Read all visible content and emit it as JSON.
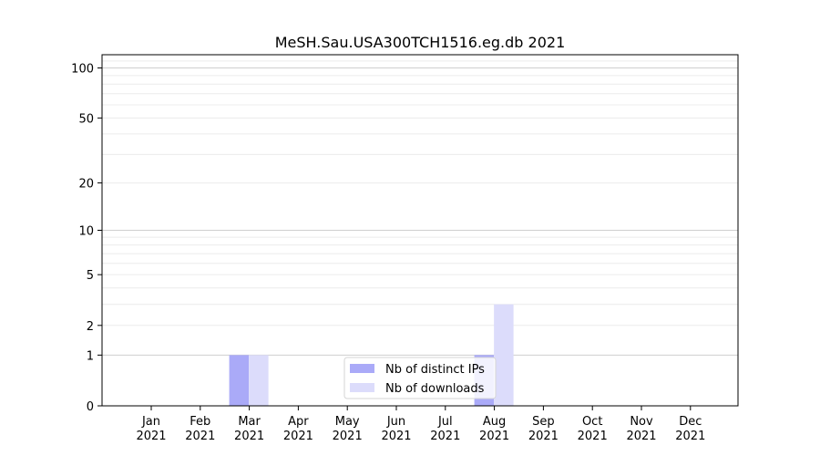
{
  "chart_data": {
    "type": "bar",
    "title": "MeSH.Sau.USA300TCH1516.eg.db 2021",
    "xlabel": "",
    "ylabel": "",
    "yscale": "log(1+y)",
    "ylim": [
      0,
      120
    ],
    "y_ticks": [
      0,
      1,
      2,
      5,
      10,
      20,
      50,
      100
    ],
    "categories": [
      [
        "Jan",
        "2021"
      ],
      [
        "Feb",
        "2021"
      ],
      [
        "Mar",
        "2021"
      ],
      [
        "Apr",
        "2021"
      ],
      [
        "May",
        "2021"
      ],
      [
        "Jun",
        "2021"
      ],
      [
        "Jul",
        "2021"
      ],
      [
        "Aug",
        "2021"
      ],
      [
        "Sep",
        "2021"
      ],
      [
        "Oct",
        "2021"
      ],
      [
        "Nov",
        "2021"
      ],
      [
        "Dec",
        "2021"
      ]
    ],
    "series": [
      {
        "name": "Nb of distinct IPs",
        "color": "#aaaaf8",
        "values": [
          0,
          0,
          1,
          0,
          0,
          0,
          0,
          1,
          0,
          0,
          0,
          0
        ]
      },
      {
        "name": "Nb of downloads",
        "color": "#dcdcfb",
        "values": [
          0,
          0,
          1,
          0,
          0,
          0,
          0,
          3,
          0,
          0,
          0,
          0
        ]
      }
    ],
    "legend_position": "bottom-center",
    "grid": true
  }
}
